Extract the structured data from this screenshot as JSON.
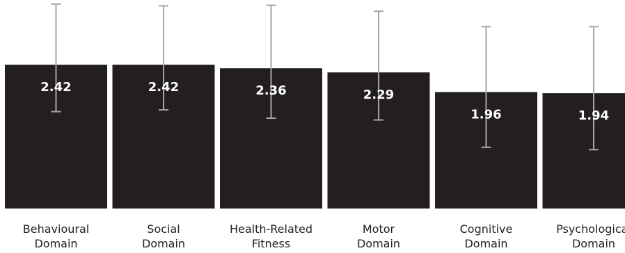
{
  "chart_data": {
    "type": "bar",
    "categories": [
      [
        "Behavioural",
        "Domain"
      ],
      [
        "Social",
        "Domain"
      ],
      [
        "Health-Related",
        "Fitness"
      ],
      [
        "Motor",
        "Domain"
      ],
      [
        "Cognitive",
        "Domain"
      ],
      [
        "Psychological",
        "Domain"
      ]
    ],
    "values": [
      2.42,
      2.42,
      2.36,
      2.29,
      1.96,
      1.94
    ],
    "value_labels": [
      "2.42",
      "2.42",
      "2.36",
      "2.29",
      "1.96",
      "1.94"
    ],
    "error_low": [
      1.63,
      1.66,
      1.52,
      1.49,
      1.03,
      0.99
    ],
    "error_high": [
      3.44,
      3.41,
      3.42,
      3.32,
      3.06,
      3.06
    ],
    "ylim": [
      0,
      3.45
    ],
    "grid": false,
    "legend": "none",
    "colors": {
      "bar": "#231f20",
      "error_bar": "#a6a6a6",
      "value_text": "#ffffff",
      "label_text": "#222222"
    }
  }
}
